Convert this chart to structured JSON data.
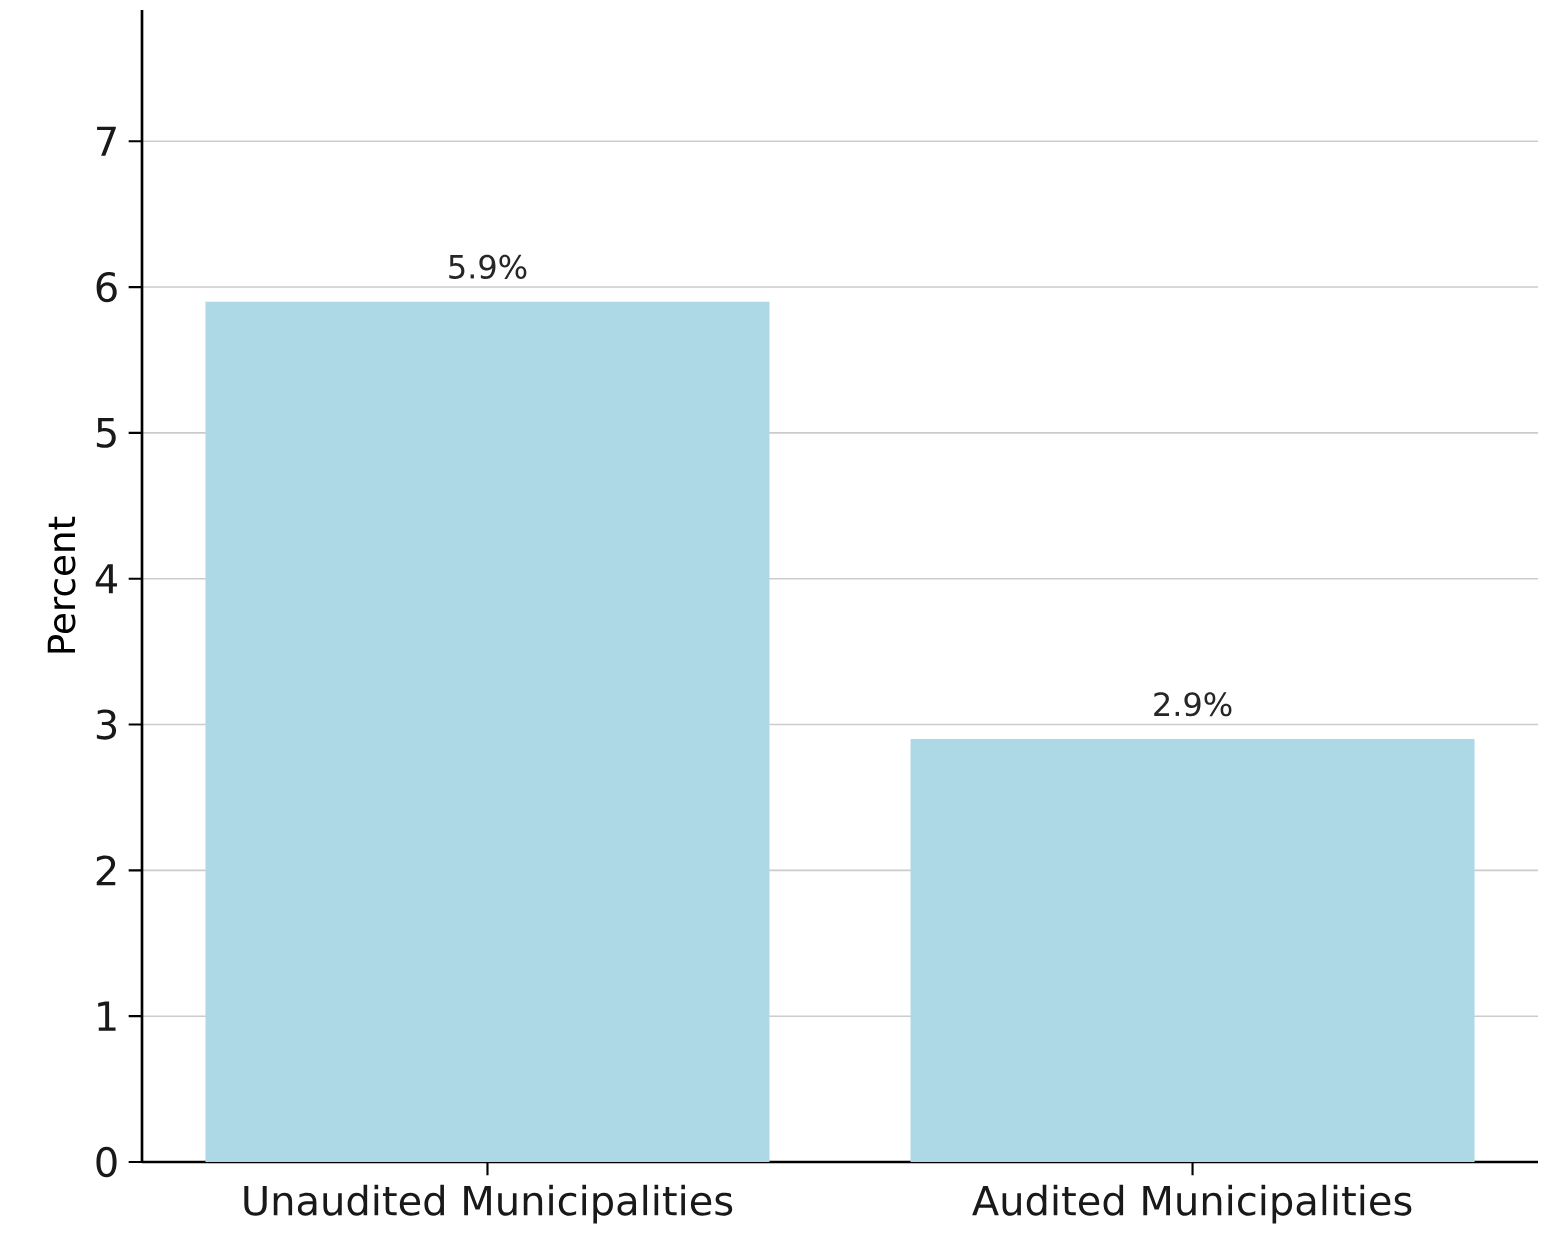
{
  "chart_data": {
    "type": "bar",
    "ylabel": "Percent",
    "categories": [
      "Unaudited Municipalities",
      "Audited Municipalities"
    ],
    "values": [
      5.9,
      2.9
    ],
    "color": "#add8e6",
    "value_labels": [
      "5.9%",
      "2.9%"
    ],
    "ylim": [
      0,
      7.9
    ],
    "yticks": [
      0,
      1,
      2,
      3,
      4,
      5,
      6,
      7
    ],
    "grid": "y"
  }
}
